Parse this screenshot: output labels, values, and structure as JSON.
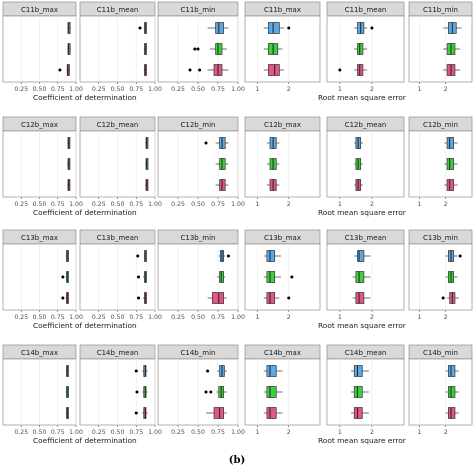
{
  "caption": "(b)",
  "colors": {
    "top": "#5aa9e6",
    "middle": "#3ecf3e",
    "bottom": "#e2577f",
    "strip": "#d9d9d9",
    "panel_border": "#7f7f7f",
    "grid": "#ebebeb"
  },
  "chart_data": {
    "type": "boxplot",
    "grid": true,
    "legend": "none",
    "metric_groups": [
      {
        "xlabel": "Coefficient of determination",
        "xlim": [
          0.0,
          1.0
        ],
        "ticks": [
          0.25,
          0.5,
          0.75,
          1.0
        ],
        "tick_labels": [
          "0.25",
          "0.50",
          "0.75",
          "1.00"
        ]
      },
      {
        "xlabel": "Root mean square error",
        "xlim": [
          0.6,
          3.0
        ],
        "ticks": [
          1,
          2
        ],
        "tick_labels": [
          "1",
          "2"
        ]
      }
    ],
    "rows": [
      {
        "panels": [
          {
            "title": "C11b_max",
            "group": 0,
            "boxes": [
              {
                "min": 0.88,
                "q1": 0.89,
                "median": 0.9,
                "q3": 0.92,
                "max": 0.93,
                "outliers": []
              },
              {
                "min": 0.88,
                "q1": 0.89,
                "median": 0.9,
                "q3": 0.92,
                "max": 0.93,
                "outliers": []
              },
              {
                "min": 0.87,
                "q1": 0.88,
                "median": 0.89,
                "q3": 0.91,
                "max": 0.92,
                "outliers": [
                  0.78
                ]
              }
            ]
          },
          {
            "title": "C11b_mean",
            "group": 0,
            "boxes": [
              {
                "min": 0.85,
                "q1": 0.86,
                "median": 0.87,
                "q3": 0.88,
                "max": 0.89,
                "outliers": [
                  0.8
                ]
              },
              {
                "min": 0.85,
                "q1": 0.86,
                "median": 0.87,
                "q3": 0.88,
                "max": 0.89,
                "outliers": []
              },
              {
                "min": 0.85,
                "q1": 0.86,
                "median": 0.87,
                "q3": 0.88,
                "max": 0.89,
                "outliers": []
              }
            ]
          },
          {
            "title": "C11b_min",
            "group": 0,
            "boxes": [
              {
                "min": 0.62,
                "q1": 0.72,
                "median": 0.76,
                "q3": 0.82,
                "max": 0.88,
                "outliers": []
              },
              {
                "min": 0.65,
                "q1": 0.72,
                "median": 0.75,
                "q3": 0.8,
                "max": 0.86,
                "outliers": [
                  0.46,
                  0.5
                ]
              },
              {
                "min": 0.62,
                "q1": 0.7,
                "median": 0.75,
                "q3": 0.8,
                "max": 0.88,
                "outliers": [
                  0.4,
                  0.52
                ]
              }
            ]
          },
          {
            "title": "C11b_max",
            "group": 1,
            "boxes": [
              {
                "min": 1.2,
                "q1": 1.35,
                "median": 1.5,
                "q3": 1.7,
                "max": 1.85,
                "outliers": [
                  2.0
                ]
              },
              {
                "min": 1.2,
                "q1": 1.35,
                "median": 1.5,
                "q3": 1.65,
                "max": 1.8,
                "outliers": []
              },
              {
                "min": 1.2,
                "q1": 1.35,
                "median": 1.55,
                "q3": 1.7,
                "max": 1.85,
                "outliers": []
              }
            ]
          },
          {
            "title": "C11b_mean",
            "group": 1,
            "boxes": [
              {
                "min": 1.45,
                "q1": 1.55,
                "median": 1.65,
                "q3": 1.75,
                "max": 1.85,
                "outliers": [
                  2.0
                ]
              },
              {
                "min": 1.45,
                "q1": 1.55,
                "median": 1.62,
                "q3": 1.72,
                "max": 1.85,
                "outliers": []
              },
              {
                "min": 1.45,
                "q1": 1.55,
                "median": 1.62,
                "q3": 1.72,
                "max": 1.85,
                "outliers": [
                  1.0
                ]
              }
            ]
          },
          {
            "title": "C11b_min",
            "group": 1,
            "boxes": [
              {
                "min": 1.9,
                "q1": 2.1,
                "median": 2.25,
                "q3": 2.4,
                "max": 2.6,
                "outliers": []
              },
              {
                "min": 1.9,
                "q1": 2.05,
                "median": 2.2,
                "q3": 2.35,
                "max": 2.55,
                "outliers": []
              },
              {
                "min": 1.9,
                "q1": 2.05,
                "median": 2.2,
                "q3": 2.35,
                "max": 2.55,
                "outliers": []
              }
            ]
          }
        ]
      },
      {
        "panels": [
          {
            "title": "C12b_max",
            "group": 0,
            "boxes": [
              {
                "min": 0.88,
                "q1": 0.89,
                "median": 0.9,
                "q3": 0.91,
                "max": 0.92,
                "outliers": []
              },
              {
                "min": 0.88,
                "q1": 0.89,
                "median": 0.9,
                "q3": 0.91,
                "max": 0.92,
                "outliers": []
              },
              {
                "min": 0.88,
                "q1": 0.89,
                "median": 0.9,
                "q3": 0.91,
                "max": 0.92,
                "outliers": []
              }
            ]
          },
          {
            "title": "C12b_mean",
            "group": 0,
            "boxes": [
              {
                "min": 0.87,
                "q1": 0.88,
                "median": 0.89,
                "q3": 0.9,
                "max": 0.91,
                "outliers": []
              },
              {
                "min": 0.87,
                "q1": 0.88,
                "median": 0.89,
                "q3": 0.9,
                "max": 0.91,
                "outliers": []
              },
              {
                "min": 0.87,
                "q1": 0.88,
                "median": 0.89,
                "q3": 0.9,
                "max": 0.91,
                "outliers": []
              }
            ]
          },
          {
            "title": "C12b_min",
            "group": 0,
            "boxes": [
              {
                "min": 0.72,
                "q1": 0.77,
                "median": 0.8,
                "q3": 0.84,
                "max": 0.88,
                "outliers": [
                  0.6
                ]
              },
              {
                "min": 0.72,
                "q1": 0.77,
                "median": 0.8,
                "q3": 0.84,
                "max": 0.88,
                "outliers": []
              },
              {
                "min": 0.72,
                "q1": 0.77,
                "median": 0.8,
                "q3": 0.84,
                "max": 0.88,
                "outliers": []
              }
            ]
          },
          {
            "title": "C12b_max",
            "group": 1,
            "boxes": [
              {
                "min": 1.3,
                "q1": 1.4,
                "median": 1.5,
                "q3": 1.6,
                "max": 1.7,
                "outliers": []
              },
              {
                "min": 1.3,
                "q1": 1.4,
                "median": 1.5,
                "q3": 1.6,
                "max": 1.7,
                "outliers": []
              },
              {
                "min": 1.3,
                "q1": 1.4,
                "median": 1.5,
                "q3": 1.6,
                "max": 1.7,
                "outliers": []
              }
            ]
          },
          {
            "title": "C12b_mean",
            "group": 1,
            "boxes": [
              {
                "min": 1.45,
                "q1": 1.5,
                "median": 1.57,
                "q3": 1.65,
                "max": 1.72,
                "outliers": []
              },
              {
                "min": 1.45,
                "q1": 1.5,
                "median": 1.57,
                "q3": 1.65,
                "max": 1.72,
                "outliers": []
              },
              {
                "min": 1.45,
                "q1": 1.5,
                "median": 1.57,
                "q3": 1.65,
                "max": 1.72,
                "outliers": []
              }
            ]
          },
          {
            "title": "C12b_min",
            "group": 1,
            "boxes": [
              {
                "min": 1.95,
                "q1": 2.05,
                "median": 2.15,
                "q3": 2.3,
                "max": 2.45,
                "outliers": []
              },
              {
                "min": 1.95,
                "q1": 2.05,
                "median": 2.15,
                "q3": 2.3,
                "max": 2.45,
                "outliers": []
              },
              {
                "min": 1.95,
                "q1": 2.05,
                "median": 2.15,
                "q3": 2.3,
                "max": 2.45,
                "outliers": []
              }
            ]
          }
        ]
      },
      {
        "panels": [
          {
            "title": "C13b_max",
            "group": 0,
            "boxes": [
              {
                "min": 0.86,
                "q1": 0.87,
                "median": 0.88,
                "q3": 0.89,
                "max": 0.9,
                "outliers": []
              },
              {
                "min": 0.86,
                "q1": 0.87,
                "median": 0.88,
                "q3": 0.89,
                "max": 0.9,
                "outliers": [
                  0.82
                ]
              },
              {
                "min": 0.86,
                "q1": 0.87,
                "median": 0.88,
                "q3": 0.89,
                "max": 0.9,
                "outliers": [
                  0.82
                ]
              }
            ]
          },
          {
            "title": "C13b_mean",
            "group": 0,
            "boxes": [
              {
                "min": 0.85,
                "q1": 0.86,
                "median": 0.87,
                "q3": 0.88,
                "max": 0.89,
                "outliers": [
                  0.77
                ]
              },
              {
                "min": 0.84,
                "q1": 0.86,
                "median": 0.87,
                "q3": 0.88,
                "max": 0.89,
                "outliers": [
                  0.78
                ]
              },
              {
                "min": 0.84,
                "q1": 0.86,
                "median": 0.87,
                "q3": 0.88,
                "max": 0.89,
                "outliers": [
                  0.78
                ]
              }
            ]
          },
          {
            "title": "C13b_min",
            "group": 0,
            "boxes": [
              {
                "min": 0.76,
                "q1": 0.78,
                "median": 0.8,
                "q3": 0.82,
                "max": 0.84,
                "outliers": [
                  0.88
                ]
              },
              {
                "min": 0.74,
                "q1": 0.77,
                "median": 0.79,
                "q3": 0.82,
                "max": 0.84,
                "outliers": []
              },
              {
                "min": 0.62,
                "q1": 0.68,
                "median": 0.76,
                "q3": 0.82,
                "max": 0.86,
                "outliers": []
              }
            ]
          },
          {
            "title": "C13b_max",
            "group": 1,
            "boxes": [
              {
                "min": 1.2,
                "q1": 1.3,
                "median": 1.4,
                "q3": 1.55,
                "max": 1.75,
                "outliers": []
              },
              {
                "min": 1.2,
                "q1": 1.3,
                "median": 1.4,
                "q3": 1.55,
                "max": 1.75,
                "outliers": [
                  2.1
                ]
              },
              {
                "min": 1.2,
                "q1": 1.3,
                "median": 1.4,
                "q3": 1.55,
                "max": 1.7,
                "outliers": [
                  2.0
                ]
              }
            ]
          },
          {
            "title": "C13b_mean",
            "group": 1,
            "boxes": [
              {
                "min": 1.45,
                "q1": 1.55,
                "median": 1.6,
                "q3": 1.75,
                "max": 1.95,
                "outliers": []
              },
              {
                "min": 1.4,
                "q1": 1.5,
                "median": 1.6,
                "q3": 1.75,
                "max": 1.95,
                "outliers": []
              },
              {
                "min": 1.4,
                "q1": 1.5,
                "median": 1.6,
                "q3": 1.75,
                "max": 1.95,
                "outliers": []
              }
            ]
          },
          {
            "title": "C13b_min",
            "group": 1,
            "boxes": [
              {
                "min": 2.0,
                "q1": 2.1,
                "median": 2.2,
                "q3": 2.3,
                "max": 2.45,
                "outliers": [
                  2.55
                ]
              },
              {
                "min": 2.0,
                "q1": 2.1,
                "median": 2.2,
                "q3": 2.3,
                "max": 2.45,
                "outliers": []
              },
              {
                "min": 2.05,
                "q1": 2.15,
                "median": 2.25,
                "q3": 2.35,
                "max": 2.5,
                "outliers": [
                  1.9
                ]
              }
            ]
          }
        ]
      },
      {
        "panels": [
          {
            "title": "C14b_max",
            "group": 0,
            "boxes": [
              {
                "min": 0.86,
                "q1": 0.87,
                "median": 0.88,
                "q3": 0.89,
                "max": 0.9,
                "outliers": []
              },
              {
                "min": 0.86,
                "q1": 0.87,
                "median": 0.88,
                "q3": 0.89,
                "max": 0.9,
                "outliers": []
              },
              {
                "min": 0.86,
                "q1": 0.87,
                "median": 0.88,
                "q3": 0.89,
                "max": 0.9,
                "outliers": []
              }
            ]
          },
          {
            "title": "C14b_mean",
            "group": 0,
            "boxes": [
              {
                "min": 0.83,
                "q1": 0.85,
                "median": 0.87,
                "q3": 0.88,
                "max": 0.9,
                "outliers": [
                  0.75
                ]
              },
              {
                "min": 0.83,
                "q1": 0.85,
                "median": 0.87,
                "q3": 0.88,
                "max": 0.9,
                "outliers": [
                  0.76
                ]
              },
              {
                "min": 0.83,
                "q1": 0.85,
                "median": 0.87,
                "q3": 0.88,
                "max": 0.9,
                "outliers": [
                  0.75
                ]
              }
            ]
          },
          {
            "title": "C14b_min",
            "group": 0,
            "boxes": [
              {
                "min": 0.74,
                "q1": 0.77,
                "median": 0.8,
                "q3": 0.83,
                "max": 0.86,
                "outliers": [
                  0.62
                ]
              },
              {
                "min": 0.73,
                "q1": 0.76,
                "median": 0.79,
                "q3": 0.82,
                "max": 0.86,
                "outliers": [
                  0.6,
                  0.66
                ]
              },
              {
                "min": 0.6,
                "q1": 0.7,
                "median": 0.77,
                "q3": 0.82,
                "max": 0.86,
                "outliers": []
              }
            ]
          },
          {
            "title": "C14b_max",
            "group": 1,
            "boxes": [
              {
                "min": 1.2,
                "q1": 1.3,
                "median": 1.4,
                "q3": 1.6,
                "max": 1.8,
                "outliers": []
              },
              {
                "min": 1.2,
                "q1": 1.3,
                "median": 1.4,
                "q3": 1.6,
                "max": 1.8,
                "outliers": []
              },
              {
                "min": 1.2,
                "q1": 1.3,
                "median": 1.4,
                "q3": 1.6,
                "max": 1.8,
                "outliers": []
              }
            ]
          },
          {
            "title": "C14b_mean",
            "group": 1,
            "boxes": [
              {
                "min": 1.35,
                "q1": 1.45,
                "median": 1.55,
                "q3": 1.7,
                "max": 1.9,
                "outliers": []
              },
              {
                "min": 1.35,
                "q1": 1.45,
                "median": 1.55,
                "q3": 1.7,
                "max": 1.9,
                "outliers": []
              },
              {
                "min": 1.35,
                "q1": 1.45,
                "median": 1.55,
                "q3": 1.7,
                "max": 1.9,
                "outliers": []
              }
            ]
          },
          {
            "title": "C14b_min",
            "group": 1,
            "boxes": [
              {
                "min": 2.0,
                "q1": 2.1,
                "median": 2.2,
                "q3": 2.35,
                "max": 2.5,
                "outliers": []
              },
              {
                "min": 2.0,
                "q1": 2.1,
                "median": 2.2,
                "q3": 2.35,
                "max": 2.5,
                "outliers": []
              },
              {
                "min": 2.0,
                "q1": 2.1,
                "median": 2.2,
                "q3": 2.35,
                "max": 2.5,
                "outliers": []
              }
            ]
          }
        ]
      }
    ]
  }
}
